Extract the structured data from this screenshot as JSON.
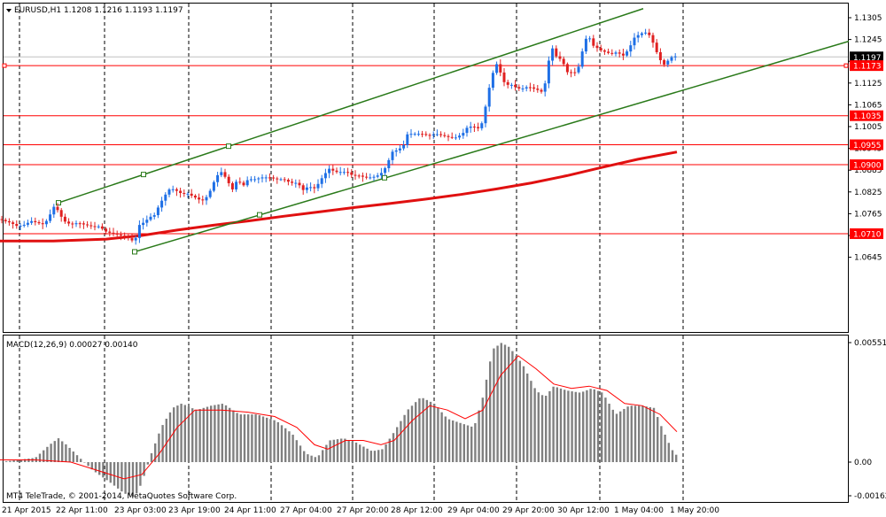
{
  "header": {
    "symbol_label": "EURUSD,H1",
    "ohlc": "1.1208 1.1216 1.1193 1.1197"
  },
  "macd": {
    "label": "MACD(12,26,9) 0.00027 0.00140"
  },
  "footer": {
    "copyright": "MT4 TeleTrade, © 2001-2014, MetaQuotes Software Corp."
  },
  "colors": {
    "candle_up": "#1e6fe6",
    "candle_down": "#e02020",
    "moving_average": "#e01010",
    "channel": "#2a7a1a",
    "level_line": "#ff0000",
    "histogram": "#808080",
    "signal": "#ff0000",
    "grid": "#000000"
  },
  "chart_data": [
    {
      "type": "candlestick",
      "title": "EURUSD,H1",
      "y_ticks": [
        "1.1305",
        "1.1245",
        "1.1185",
        "1.1125",
        "1.1065",
        "1.1005",
        "1.0945",
        "1.0885",
        "1.0825",
        "1.0765",
        "1.0705",
        "1.0645"
      ],
      "ylim": [
        1.0645,
        1.1325
      ],
      "current_price": "1.1197",
      "horizontal_levels": [
        "1.1173",
        "1.1035",
        "1.0955",
        "1.0900",
        "1.0710"
      ],
      "x_ticks": [
        "21 Apr 2015",
        "22 Apr 11:00",
        "23 Apr 03:00",
        "23 Apr 19:00",
        "24 Apr 11:00",
        "27 Apr 04:00",
        "27 Apr 20:00",
        "28 Apr 12:00",
        "29 Apr 04:00",
        "29 Apr 20:00",
        "30 Apr 12:00",
        "1 May 04:00",
        "1 May 20:00"
      ],
      "close_path": [
        [
          0,
          1.075
        ],
        [
          5,
          1.0745
        ],
        [
          12,
          1.074
        ],
        [
          20,
          1.073
        ],
        [
          28,
          1.0735
        ],
        [
          35,
          1.0745
        ],
        [
          42,
          1.074
        ],
        [
          50,
          1.0735
        ],
        [
          56,
          1.076
        ],
        [
          62,
          1.079
        ],
        [
          66,
          1.077
        ],
        [
          72,
          1.0745
        ],
        [
          80,
          1.0735
        ],
        [
          88,
          1.074
        ],
        [
          95,
          1.0735
        ],
        [
          104,
          1.073
        ],
        [
          112,
          1.073
        ],
        [
          120,
          1.0715
        ],
        [
          128,
          1.071
        ],
        [
          136,
          1.0705
        ],
        [
          143,
          1.07
        ],
        [
          150,
          1.069
        ],
        [
          154,
          1.07
        ],
        [
          158,
          1.074
        ],
        [
          163,
          1.074
        ],
        [
          168,
          1.0755
        ],
        [
          174,
          1.076
        ],
        [
          180,
          1.079
        ],
        [
          186,
          1.0815
        ],
        [
          192,
          1.0835
        ],
        [
          198,
          1.083
        ],
        [
          205,
          1.082
        ],
        [
          212,
          1.082
        ],
        [
          220,
          1.081
        ],
        [
          228,
          1.08
        ],
        [
          235,
          1.0815
        ],
        [
          240,
          1.0845
        ],
        [
          245,
          1.087
        ],
        [
          250,
          1.088
        ],
        [
          256,
          1.086
        ],
        [
          262,
          1.083
        ],
        [
          268,
          1.086
        ],
        [
          274,
          1.084
        ],
        [
          280,
          1.086
        ],
        [
          288,
          1.086
        ],
        [
          296,
          1.0865
        ],
        [
          304,
          1.0865
        ],
        [
          312,
          1.086
        ],
        [
          320,
          1.086
        ],
        [
          328,
          1.085
        ],
        [
          336,
          1.085
        ],
        [
          342,
          1.083
        ],
        [
          348,
          1.084
        ],
        [
          355,
          1.0835
        ],
        [
          360,
          1.085
        ],
        [
          365,
          1.087
        ],
        [
          372,
          1.089
        ],
        [
          378,
          1.088
        ],
        [
          385,
          1.088
        ],
        [
          392,
          1.088
        ],
        [
          398,
          1.087
        ],
        [
          405,
          1.087
        ],
        [
          412,
          1.0865
        ],
        [
          420,
          1.0865
        ],
        [
          426,
          1.087
        ],
        [
          432,
          1.088
        ],
        [
          437,
          1.09
        ],
        [
          442,
          1.0935
        ],
        [
          448,
          1.094
        ],
        [
          455,
          1.095
        ],
        [
          460,
          1.0985
        ],
        [
          468,
          1.0985
        ],
        [
          476,
          1.0985
        ],
        [
          484,
          1.098
        ],
        [
          492,
          1.0985
        ],
        [
          500,
          1.098
        ],
        [
          508,
          1.0975
        ],
        [
          515,
          1.0975
        ],
        [
          522,
          1.0985
        ],
        [
          528,
          1.1005
        ],
        [
          534,
          1.1005
        ],
        [
          540,
          1.1
        ],
        [
          544,
          1.1015
        ],
        [
          548,
          1.106
        ],
        [
          552,
          1.111
        ],
        [
          556,
          1.115
        ],
        [
          560,
          1.118
        ],
        [
          564,
          1.116
        ],
        [
          568,
          1.113
        ],
        [
          572,
          1.112
        ],
        [
          578,
          1.112
        ],
        [
          584,
          1.111
        ],
        [
          590,
          1.111
        ],
        [
          596,
          1.1115
        ],
        [
          602,
          1.111
        ],
        [
          608,
          1.1105
        ],
        [
          612,
          1.11
        ],
        [
          616,
          1.113
        ],
        [
          619,
          1.118
        ],
        [
          622,
          1.123
        ],
        [
          627,
          1.12
        ],
        [
          633,
          1.119
        ],
        [
          638,
          1.117
        ],
        [
          642,
          1.1145
        ],
        [
          646,
          1.116
        ],
        [
          651,
          1.115
        ],
        [
          656,
          1.12
        ],
        [
          660,
          1.124
        ],
        [
          664,
          1.126
        ],
        [
          668,
          1.123
        ],
        [
          672,
          1.1225
        ],
        [
          678,
          1.1215
        ],
        [
          684,
          1.121
        ],
        [
          690,
          1.1205
        ],
        [
          696,
          1.121
        ],
        [
          704,
          1.12
        ],
        [
          710,
          1.122
        ],
        [
          716,
          1.125
        ],
        [
          722,
          1.126
        ],
        [
          728,
          1.1265
        ],
        [
          734,
          1.1255
        ],
        [
          738,
          1.123
        ],
        [
          742,
          1.1205
        ],
        [
          746,
          1.1185
        ],
        [
          750,
          1.1175
        ],
        [
          755,
          1.119
        ],
        [
          760,
          1.12
        ],
        [
          764,
          1.1197
        ]
      ],
      "moving_average": [
        [
          0,
          1.069
        ],
        [
          60,
          1.069
        ],
        [
          120,
          1.0695
        ],
        [
          160,
          1.0705
        ],
        [
          200,
          1.072
        ],
        [
          240,
          1.0733
        ],
        [
          280,
          1.0745
        ],
        [
          320,
          1.0758
        ],
        [
          360,
          1.077
        ],
        [
          400,
          1.0782
        ],
        [
          440,
          1.0793
        ],
        [
          480,
          1.0805
        ],
        [
          520,
          1.0818
        ],
        [
          560,
          1.0833
        ],
        [
          600,
          1.085
        ],
        [
          640,
          1.087
        ],
        [
          680,
          1.0893
        ],
        [
          720,
          1.0915
        ],
        [
          764,
          1.0935
        ]
      ],
      "channel": {
        "upper": [
          [
            66,
            1.0795
          ],
          [
            726,
            1.133
          ]
        ],
        "lower": [
          [
            152,
            1.066
          ],
          [
            958,
            1.124
          ]
        ],
        "markers": [
          [
            66,
            1.0795
          ],
          [
            162,
            1.0873
          ],
          [
            258,
            1.0951
          ],
          [
            152,
            1.066
          ],
          [
            293,
            1.0762
          ],
          [
            434,
            1.0864
          ]
        ]
      }
    },
    {
      "type": "bar",
      "title": "MACD(12,26,9) 0.00027 0.00140",
      "y_ticks": [
        "0.00551",
        "0.00",
        "-0.00162"
      ],
      "ylim": [
        -0.00162,
        0.00551
      ],
      "histogram_envelope": [
        [
          0,
          0.0
        ],
        [
          20,
          0.0001
        ],
        [
          40,
          0.0002
        ],
        [
          56,
          0.0008
        ],
        [
          66,
          0.0011
        ],
        [
          75,
          0.0008
        ],
        [
          90,
          0.0002
        ],
        [
          105,
          -0.0004
        ],
        [
          125,
          -0.001
        ],
        [
          140,
          -0.0015
        ],
        [
          152,
          -0.0017
        ],
        [
          160,
          -0.001
        ],
        [
          170,
          0.0003
        ],
        [
          182,
          0.0016
        ],
        [
          195,
          0.0025
        ],
        [
          205,
          0.0027
        ],
        [
          222,
          0.0024
        ],
        [
          238,
          0.0026
        ],
        [
          252,
          0.0027
        ],
        [
          270,
          0.0022
        ],
        [
          290,
          0.0022
        ],
        [
          312,
          0.0019
        ],
        [
          330,
          0.0013
        ],
        [
          345,
          0.0004
        ],
        [
          358,
          0.0002
        ],
        [
          372,
          0.001
        ],
        [
          388,
          0.0011
        ],
        [
          402,
          0.0009
        ],
        [
          420,
          0.0005
        ],
        [
          432,
          0.0006
        ],
        [
          445,
          0.0014
        ],
        [
          460,
          0.0024
        ],
        [
          475,
          0.003
        ],
        [
          490,
          0.0027
        ],
        [
          505,
          0.002
        ],
        [
          520,
          0.0018
        ],
        [
          535,
          0.0016
        ],
        [
          545,
          0.003
        ],
        [
          556,
          0.0052
        ],
        [
          566,
          0.0055
        ],
        [
          575,
          0.0053
        ],
        [
          590,
          0.0045
        ],
        [
          605,
          0.0033
        ],
        [
          615,
          0.003
        ],
        [
          625,
          0.0035
        ],
        [
          640,
          0.0033
        ],
        [
          655,
          0.0032
        ],
        [
          668,
          0.0034
        ],
        [
          680,
          0.0032
        ],
        [
          695,
          0.0022
        ],
        [
          710,
          0.0026
        ],
        [
          725,
          0.0026
        ],
        [
          738,
          0.0025
        ],
        [
          748,
          0.0015
        ],
        [
          758,
          0.0006
        ],
        [
          764,
          0.0003
        ]
      ],
      "signal": [
        [
          0,
          0.0001
        ],
        [
          40,
          0.0001
        ],
        [
          80,
          0.0
        ],
        [
          110,
          -0.0004
        ],
        [
          140,
          -0.0008
        ],
        [
          160,
          -0.0006
        ],
        [
          180,
          0.0004
        ],
        [
          200,
          0.0016
        ],
        [
          220,
          0.0024
        ],
        [
          250,
          0.0024
        ],
        [
          280,
          0.0023
        ],
        [
          310,
          0.0021
        ],
        [
          335,
          0.0016
        ],
        [
          355,
          0.0008
        ],
        [
          370,
          0.0006
        ],
        [
          390,
          0.001
        ],
        [
          410,
          0.001
        ],
        [
          430,
          0.0008
        ],
        [
          445,
          0.001
        ],
        [
          465,
          0.0019
        ],
        [
          485,
          0.0026
        ],
        [
          505,
          0.0024
        ],
        [
          525,
          0.002
        ],
        [
          545,
          0.0024
        ],
        [
          565,
          0.004
        ],
        [
          585,
          0.0049
        ],
        [
          605,
          0.0043
        ],
        [
          625,
          0.0036
        ],
        [
          645,
          0.0034
        ],
        [
          665,
          0.0035
        ],
        [
          685,
          0.0033
        ],
        [
          705,
          0.0027
        ],
        [
          725,
          0.0026
        ],
        [
          745,
          0.0022
        ],
        [
          764,
          0.0014
        ]
      ]
    }
  ]
}
